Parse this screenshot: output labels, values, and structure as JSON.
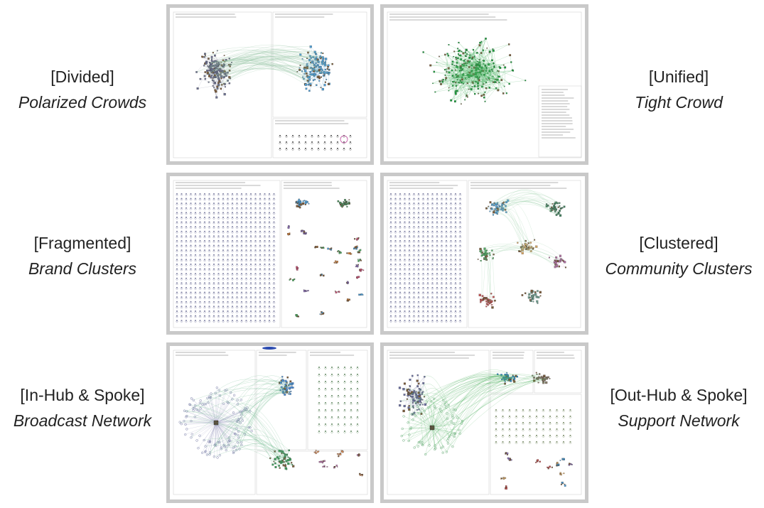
{
  "panels": [
    {
      "id": "divided",
      "category": "[Divided]",
      "name": "Polarized Crowds",
      "layout": "two-clusters",
      "colors": [
        "#6b6f8e",
        "#4b9ad1"
      ]
    },
    {
      "id": "unified",
      "category": "[Unified]",
      "name": "Tight Crowd",
      "layout": "dense-single",
      "colors": [
        "#1a9b3a",
        "#50b866"
      ]
    },
    {
      "id": "fragmented",
      "category": "[Fragmented]",
      "name": "Brand Clusters",
      "layout": "isolates-grid",
      "colors": [
        "#8a8cab",
        "#4b9ad1"
      ]
    },
    {
      "id": "clustered",
      "category": "[Clustered]",
      "name": "Community Clusters",
      "layout": "many-clusters",
      "colors": [
        "#4b9ad1",
        "#4ea860"
      ]
    },
    {
      "id": "in-hub",
      "category": "[In-Hub & Spoke]",
      "name": "Broadcast Network",
      "layout": "in-hub",
      "colors": [
        "#7a7ea8",
        "#3d9a5a"
      ]
    },
    {
      "id": "out-hub",
      "category": "[Out-Hub & Spoke]",
      "name": "Support Network",
      "layout": "out-hub",
      "colors": [
        "#1f7fd0",
        "#3aa550"
      ]
    }
  ]
}
